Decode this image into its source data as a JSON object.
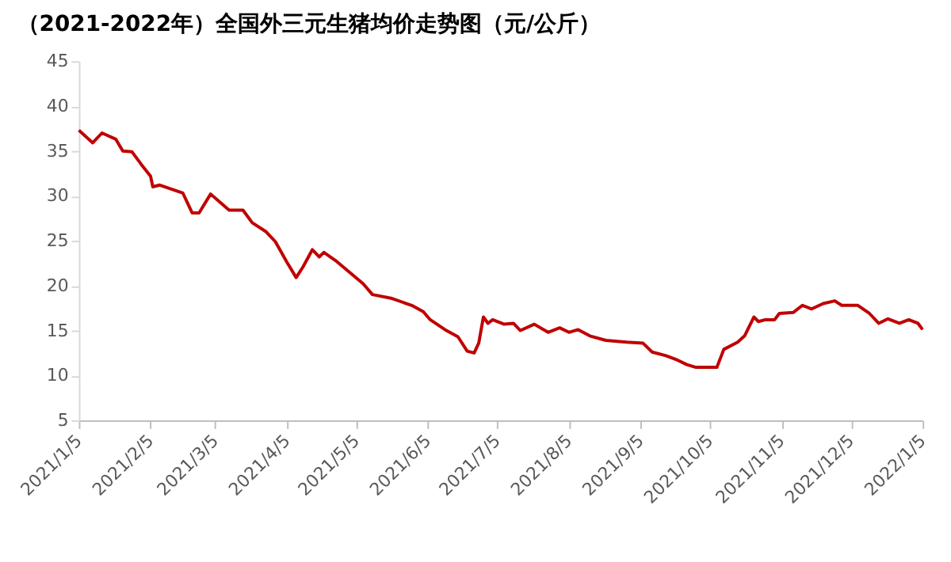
{
  "chart_data": {
    "type": "line",
    "title": "（2021-2022年）全国外三元生猪均价走势图（元/公斤）",
    "x": [
      "2021-01-05",
      "2021-01-11",
      "2021-01-15",
      "2021-01-21",
      "2021-01-24",
      "2021-01-28",
      "2021-02-01",
      "2021-02-05",
      "2021-02-06",
      "2021-02-09",
      "2021-02-19",
      "2021-02-23",
      "2021-02-26",
      "2021-03-03",
      "2021-03-11",
      "2021-03-17",
      "2021-03-21",
      "2021-03-27",
      "2021-03-31",
      "2021-04-05",
      "2021-04-09",
      "2021-04-12",
      "2021-04-16",
      "2021-04-19",
      "2021-04-21",
      "2021-04-26",
      "2021-05-08",
      "2021-05-12",
      "2021-05-20",
      "2021-05-29",
      "2021-06-03",
      "2021-06-06",
      "2021-06-13",
      "2021-06-18",
      "2021-06-22",
      "2021-06-25",
      "2021-06-27",
      "2021-06-29",
      "2021-07-01",
      "2021-07-03",
      "2021-07-08",
      "2021-07-12",
      "2021-07-15",
      "2021-07-21",
      "2021-07-27",
      "2021-08-01",
      "2021-08-05",
      "2021-08-09",
      "2021-08-14",
      "2021-08-21",
      "2021-08-30",
      "2021-09-06",
      "2021-09-10",
      "2021-09-16",
      "2021-09-21",
      "2021-09-25",
      "2021-09-29",
      "2021-10-08",
      "2021-10-11",
      "2021-10-17",
      "2021-10-20",
      "2021-10-24",
      "2021-10-26",
      "2021-10-29",
      "2021-11-02",
      "2021-11-04",
      "2021-11-10",
      "2021-11-14",
      "2021-11-18",
      "2021-11-23",
      "2021-11-28",
      "2021-12-01",
      "2021-12-08",
      "2021-12-13",
      "2021-12-17",
      "2021-12-21",
      "2021-12-26",
      "2021-12-30",
      "2022-01-03",
      "2022-01-05"
    ],
    "series": [
      {
        "color": "#c00000",
        "values": [
          37.3,
          35.9,
          37.0,
          36.3,
          35.0,
          34.9,
          33.5,
          32.2,
          31.0,
          31.2,
          30.3,
          28.1,
          28.1,
          30.2,
          28.4,
          28.4,
          27.0,
          26.0,
          24.9,
          22.6,
          20.9,
          22.1,
          24.0,
          23.2,
          23.7,
          22.8,
          20.2,
          19.0,
          18.6,
          17.8,
          17.1,
          16.2,
          15.0,
          14.3,
          12.7,
          12.5,
          13.6,
          16.5,
          15.8,
          16.2,
          15.7,
          15.8,
          15.0,
          15.7,
          14.8,
          15.3,
          14.8,
          15.1,
          14.4,
          13.9,
          13.7,
          13.6,
          12.6,
          12.2,
          11.7,
          11.2,
          10.9,
          10.9,
          12.9,
          13.7,
          14.4,
          16.5,
          16.0,
          16.2,
          16.2,
          16.9,
          17.0,
          17.8,
          17.4,
          18.0,
          18.3,
          17.8,
          17.8,
          16.9,
          15.8,
          16.3,
          15.8,
          16.2,
          15.8,
          15.1
        ]
      }
    ],
    "xlim": [
      "2021-01-05",
      "2022-01-05"
    ],
    "xticks": [
      {
        "value": "2021-01-05",
        "label": "2021/1/5"
      },
      {
        "value": "2021-02-05",
        "label": "2021/2/5"
      },
      {
        "value": "2021-03-05",
        "label": "2021/3/5"
      },
      {
        "value": "2021-04-05",
        "label": "2021/4/5"
      },
      {
        "value": "2021-05-05",
        "label": "2021/5/5"
      },
      {
        "value": "2021-06-05",
        "label": "2021/6/5"
      },
      {
        "value": "2021-07-05",
        "label": "2021/7/5"
      },
      {
        "value": "2021-08-05",
        "label": "2021/8/5"
      },
      {
        "value": "2021-09-05",
        "label": "2021/9/5"
      },
      {
        "value": "2021-10-05",
        "label": "2021/10/5"
      },
      {
        "value": "2021-11-05",
        "label": "2021/11/5"
      },
      {
        "value": "2021-12-05",
        "label": "2021/12/5"
      },
      {
        "value": "2022-01-05",
        "label": "2022/1/5"
      }
    ],
    "ylim": [
      5,
      45
    ],
    "yticks": [
      5,
      10,
      15,
      20,
      25,
      30,
      35,
      40,
      45
    ],
    "grid": false,
    "legend": false,
    "marker": "none",
    "line_style": "solid"
  }
}
